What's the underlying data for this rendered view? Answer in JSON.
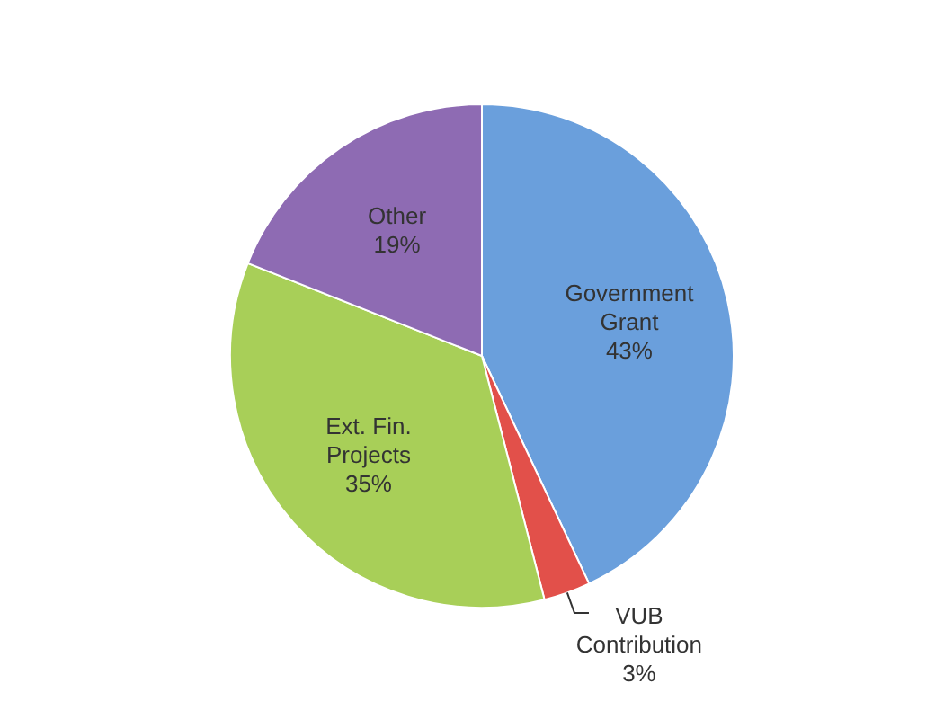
{
  "chart_data": {
    "type": "pie",
    "categories": [
      "Government Grant",
      "VUB Contribution",
      "Ext. Fin. Projects",
      "Other"
    ],
    "values": [
      43,
      3,
      35,
      19
    ],
    "value_labels": [
      "43%",
      "3%",
      "35%",
      "19%"
    ],
    "colors": [
      "#6a9fdc",
      "#e2504a",
      "#a8cf58",
      "#8e6bb3"
    ]
  }
}
